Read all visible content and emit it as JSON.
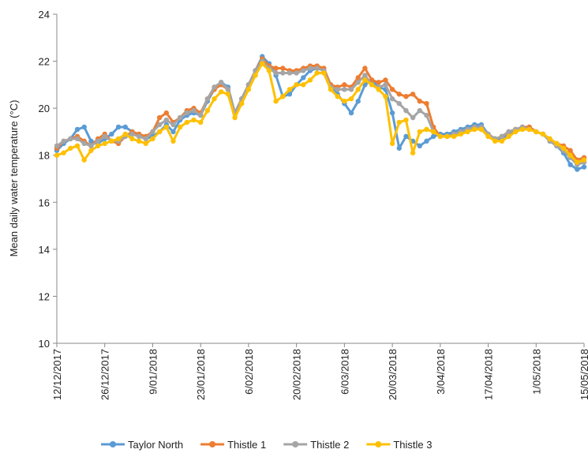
{
  "chart_data": {
    "type": "line",
    "y_label": "Mean daily water temperature (°C)",
    "categories": [
      "12/12/2017",
      null,
      null,
      null,
      null,
      null,
      null,
      "26/12/2017",
      null,
      null,
      null,
      null,
      null,
      null,
      "9/01/2018",
      null,
      null,
      null,
      null,
      null,
      null,
      "23/01/2018",
      null,
      null,
      null,
      null,
      null,
      null,
      "6/02/2018",
      null,
      null,
      null,
      null,
      null,
      null,
      "20/02/2018",
      null,
      null,
      null,
      null,
      null,
      null,
      "6/03/2018",
      null,
      null,
      null,
      null,
      null,
      null,
      "20/03/2018",
      null,
      null,
      null,
      null,
      null,
      null,
      "3/04/2018",
      null,
      null,
      null,
      null,
      null,
      null,
      "17/04/2018",
      null,
      null,
      null,
      null,
      null,
      null,
      "1/05/2018",
      null,
      null,
      null,
      null,
      null,
      null,
      "15/05/2018"
    ],
    "ylim": [
      10,
      24
    ],
    "yticks": [
      10,
      12,
      14,
      16,
      18,
      20,
      22,
      24
    ],
    "legend": "bottom",
    "series": [
      {
        "name": "Taylor North",
        "color": "#5b9bd5",
        "values": [
          18.2,
          18.5,
          18.7,
          19.1,
          19.2,
          18.6,
          18.5,
          18.7,
          18.9,
          19.2,
          19.2,
          19.0,
          18.8,
          18.7,
          18.8,
          19.0,
          19.3,
          19.0,
          19.5,
          19.7,
          19.8,
          19.7,
          20.3,
          20.8,
          21.1,
          20.9,
          19.8,
          20.4,
          21.0,
          21.6,
          22.2,
          21.9,
          21.4,
          20.5,
          20.6,
          21.0,
          21.3,
          21.6,
          21.7,
          21.6,
          21.0,
          20.6,
          20.2,
          19.8,
          20.3,
          21.0,
          21.2,
          20.9,
          20.8,
          19.8,
          18.3,
          18.8,
          18.6,
          18.4,
          18.6,
          18.8,
          18.9,
          18.9,
          19.0,
          19.1,
          19.2,
          19.3,
          19.3,
          18.9,
          18.7,
          18.7,
          18.9,
          19.1,
          19.2,
          19.2,
          19.0,
          18.9,
          18.6,
          18.4,
          18.1,
          17.6,
          17.4,
          17.5
        ]
      },
      {
        "name": "Thistle 1",
        "color": "#ed7d31",
        "values": [
          18.3,
          18.6,
          18.7,
          18.8,
          18.6,
          18.4,
          18.7,
          18.9,
          18.6,
          18.5,
          18.8,
          19.0,
          18.9,
          18.8,
          19.0,
          19.6,
          19.8,
          19.4,
          19.6,
          19.9,
          20.0,
          19.8,
          20.4,
          20.8,
          21.0,
          20.8,
          19.8,
          20.4,
          21.0,
          21.6,
          22.1,
          21.8,
          21.7,
          21.7,
          21.6,
          21.6,
          21.7,
          21.8,
          21.8,
          21.7,
          21.0,
          20.9,
          21.0,
          20.9,
          21.3,
          21.7,
          21.2,
          21.1,
          21.2,
          20.8,
          20.6,
          20.5,
          20.6,
          20.3,
          20.2,
          19.2,
          18.8,
          18.8,
          18.9,
          19.0,
          19.1,
          19.2,
          19.1,
          18.8,
          18.7,
          18.8,
          19.0,
          19.1,
          19.2,
          19.2,
          19.0,
          18.9,
          18.7,
          18.5,
          18.4,
          18.2,
          17.8,
          17.9
        ]
      },
      {
        "name": "Thistle 2",
        "color": "#a5a5a5",
        "values": [
          18.4,
          18.6,
          18.7,
          18.7,
          18.5,
          18.4,
          18.6,
          18.8,
          18.6,
          18.6,
          18.8,
          18.9,
          18.8,
          18.7,
          19.0,
          19.3,
          19.5,
          19.3,
          19.6,
          19.8,
          19.9,
          19.7,
          20.4,
          20.9,
          21.1,
          20.8,
          19.8,
          20.4,
          21.0,
          21.6,
          22.0,
          21.7,
          21.5,
          21.5,
          21.5,
          21.5,
          21.6,
          21.7,
          21.7,
          21.6,
          20.9,
          20.8,
          20.8,
          20.8,
          21.1,
          21.4,
          21.0,
          20.9,
          21.0,
          20.4,
          20.2,
          19.9,
          19.6,
          19.9,
          19.7,
          19.0,
          18.8,
          18.8,
          18.9,
          19.0,
          19.1,
          19.2,
          19.2,
          18.9,
          18.7,
          18.8,
          19.0,
          19.1,
          19.2,
          19.1,
          19.0,
          18.9,
          18.6,
          18.4,
          18.2,
          17.9,
          17.6,
          17.7
        ]
      },
      {
        "name": "Thistle 3",
        "color": "#ffc000",
        "values": [
          18.0,
          18.1,
          18.3,
          18.4,
          17.8,
          18.2,
          18.4,
          18.5,
          18.6,
          18.7,
          18.9,
          18.7,
          18.6,
          18.5,
          18.7,
          19.0,
          19.2,
          18.6,
          19.2,
          19.4,
          19.5,
          19.4,
          19.9,
          20.4,
          20.7,
          20.6,
          19.6,
          20.2,
          20.8,
          21.4,
          21.9,
          21.6,
          20.3,
          20.5,
          20.8,
          21.0,
          21.0,
          21.2,
          21.5,
          21.5,
          20.8,
          20.5,
          20.3,
          20.4,
          20.8,
          21.2,
          21.0,
          20.8,
          20.5,
          18.5,
          19.4,
          19.5,
          18.1,
          19.0,
          19.1,
          19.0,
          18.8,
          18.8,
          18.8,
          18.9,
          19.0,
          19.1,
          19.1,
          18.8,
          18.6,
          18.6,
          18.8,
          19.0,
          19.1,
          19.1,
          19.0,
          18.9,
          18.7,
          18.5,
          18.3,
          18.0,
          17.7,
          17.8
        ]
      }
    ]
  }
}
